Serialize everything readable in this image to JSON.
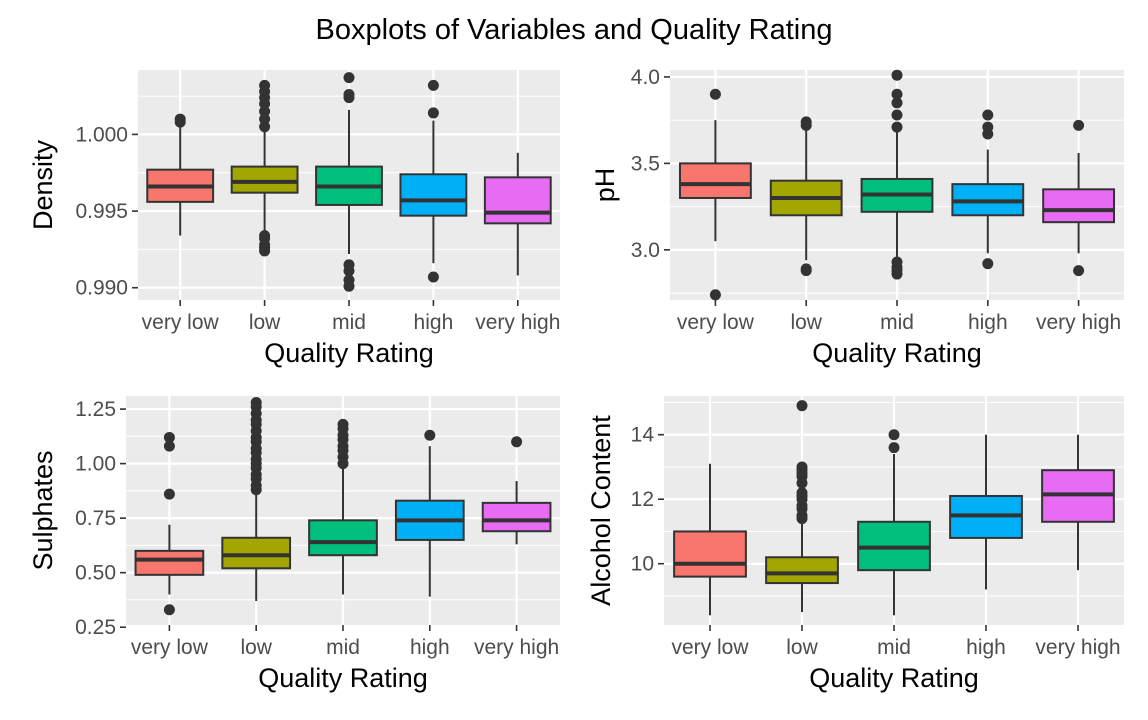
{
  "title": "Boxplots of Variables and Quality Rating",
  "colors": {
    "very low": "#F8766D",
    "low": "#A3A500",
    "mid": "#00BF7D",
    "high": "#00B0F6",
    "very high": "#E76BF3",
    "panel_bg": "#EBEBEB",
    "grid": "#FFFFFF"
  },
  "chart_data": [
    {
      "type": "boxplot",
      "xlabel": "Quality Rating",
      "ylabel": "Density",
      "categories": [
        "very low",
        "low",
        "mid",
        "high",
        "very high"
      ],
      "ylim": [
        0.9892,
        1.0042
      ],
      "yticks": [
        0.99,
        0.995,
        1.0
      ],
      "ytick_labels": [
        "0.990",
        "0.995",
        "1.000"
      ],
      "grid": true,
      "boxes": [
        {
          "label": "very low",
          "whisker_low": 0.9934,
          "q1": 0.9956,
          "median": 0.9966,
          "q3": 0.9977,
          "whisker_high": 1.0008,
          "outliers": [
            1.0008,
            1.001
          ]
        },
        {
          "label": "low",
          "whisker_low": 0.9936,
          "q1": 0.9962,
          "median": 0.9969,
          "q3": 0.9979,
          "whisker_high": 1.0003,
          "outliers": [
            1.0005,
            1.001,
            1.0015,
            1.002,
            1.0024,
            1.0028,
            1.0032,
            0.9924,
            0.9926,
            0.9928,
            0.9932,
            0.9934
          ]
        },
        {
          "label": "mid",
          "whisker_low": 0.9922,
          "q1": 0.9954,
          "median": 0.9966,
          "q3": 0.9979,
          "whisker_high": 1.0016,
          "outliers": [
            1.0024,
            1.0026,
            1.0037,
            0.9915,
            0.9911,
            0.9905,
            0.9901
          ]
        },
        {
          "label": "high",
          "whisker_low": 0.9916,
          "q1": 0.9947,
          "median": 0.9957,
          "q3": 0.9974,
          "whisker_high": 1.0009,
          "outliers": [
            1.0014,
            1.0032,
            0.9907
          ]
        },
        {
          "label": "very high",
          "whisker_low": 0.9908,
          "q1": 0.9942,
          "median": 0.9949,
          "q3": 0.9972,
          "whisker_high": 0.9988,
          "outliers": []
        }
      ]
    },
    {
      "type": "boxplot",
      "xlabel": "Quality Rating",
      "ylabel": "pH",
      "categories": [
        "very low",
        "low",
        "mid",
        "high",
        "very high"
      ],
      "ylim": [
        2.71,
        4.04
      ],
      "yticks": [
        3.0,
        3.5,
        4.0
      ],
      "ytick_labels": [
        "3.0",
        "3.5",
        "4.0"
      ],
      "grid": true,
      "boxes": [
        {
          "label": "very low",
          "whisker_low": 3.05,
          "q1": 3.3,
          "median": 3.38,
          "q3": 3.5,
          "whisker_high": 3.75,
          "outliers": [
            3.9,
            2.74
          ]
        },
        {
          "label": "low",
          "whisker_low": 2.94,
          "q1": 3.2,
          "median": 3.3,
          "q3": 3.4,
          "whisker_high": 3.69,
          "outliers": [
            3.72,
            3.74,
            2.88,
            2.89
          ]
        },
        {
          "label": "mid",
          "whisker_low": 2.96,
          "q1": 3.22,
          "median": 3.32,
          "q3": 3.41,
          "whisker_high": 3.68,
          "outliers": [
            3.71,
            3.78,
            3.85,
            3.9,
            4.01,
            2.93,
            2.9,
            2.88,
            2.86
          ]
        },
        {
          "label": "high",
          "whisker_low": 2.98,
          "q1": 3.2,
          "median": 3.28,
          "q3": 3.38,
          "whisker_high": 3.58,
          "outliers": [
            3.67,
            3.71,
            3.78,
            2.92
          ]
        },
        {
          "label": "very high",
          "whisker_low": 2.98,
          "q1": 3.16,
          "median": 3.23,
          "q3": 3.35,
          "whisker_high": 3.56,
          "outliers": [
            3.72,
            2.88
          ]
        }
      ]
    },
    {
      "type": "boxplot",
      "xlabel": "Quality Rating",
      "ylabel": "Sulphates",
      "categories": [
        "very low",
        "low",
        "mid",
        "high",
        "very high"
      ],
      "ylim": [
        0.26,
        1.31
      ],
      "yticks": [
        0.25,
        0.5,
        0.75,
        1.0,
        1.25
      ],
      "ytick_labels": [
        "0.25",
        "0.50",
        "0.75",
        "1.00",
        "1.25"
      ],
      "grid": true,
      "boxes": [
        {
          "label": "very low",
          "whisker_low": 0.4,
          "q1": 0.49,
          "median": 0.56,
          "q3": 0.6,
          "whisker_high": 0.72,
          "outliers": [
            0.86,
            1.08,
            1.12,
            0.33
          ]
        },
        {
          "label": "low",
          "whisker_low": 0.37,
          "q1": 0.52,
          "median": 0.58,
          "q3": 0.66,
          "whisker_high": 0.87,
          "outliers": [
            0.88,
            0.9,
            0.93,
            0.95,
            0.98,
            1.0,
            1.02,
            1.05,
            1.07,
            1.1,
            1.12,
            1.15,
            1.18,
            1.2,
            1.23,
            1.26,
            1.28
          ]
        },
        {
          "label": "mid",
          "whisker_low": 0.4,
          "q1": 0.58,
          "median": 0.64,
          "q3": 0.74,
          "whisker_high": 0.98,
          "outliers": [
            1.0,
            1.03,
            1.06,
            1.08,
            1.11,
            1.13,
            1.16,
            1.18
          ]
        },
        {
          "label": "high",
          "whisker_low": 0.39,
          "q1": 0.65,
          "median": 0.74,
          "q3": 0.83,
          "whisker_high": 1.08,
          "outliers": [
            1.13
          ]
        },
        {
          "label": "very high",
          "whisker_low": 0.63,
          "q1": 0.69,
          "median": 0.74,
          "q3": 0.82,
          "whisker_high": 0.92,
          "outliers": [
            1.1
          ]
        }
      ]
    },
    {
      "type": "boxplot",
      "xlabel": "Quality Rating",
      "ylabel": "Alcohol Content",
      "categories": [
        "very low",
        "low",
        "mid",
        "high",
        "very high"
      ],
      "ylim": [
        8.1,
        15.2
      ],
      "yticks": [
        10,
        12,
        14
      ],
      "ytick_labels": [
        "10",
        "12",
        "14"
      ],
      "grid": true,
      "boxes": [
        {
          "label": "very low",
          "whisker_low": 8.4,
          "q1": 9.6,
          "median": 10.0,
          "q3": 11.0,
          "whisker_high": 13.1,
          "outliers": []
        },
        {
          "label": "low",
          "whisker_low": 8.5,
          "q1": 9.4,
          "median": 9.7,
          "q3": 10.2,
          "whisker_high": 11.3,
          "outliers": [
            11.4,
            11.5,
            11.7,
            11.8,
            12.0,
            12.1,
            12.2,
            12.5,
            12.7,
            12.8,
            12.9,
            13.0,
            14.9
          ]
        },
        {
          "label": "mid",
          "whisker_low": 8.4,
          "q1": 9.8,
          "median": 10.5,
          "q3": 11.3,
          "whisker_high": 13.4,
          "outliers": [
            13.6,
            14.0
          ]
        },
        {
          "label": "high",
          "whisker_low": 9.2,
          "q1": 10.8,
          "median": 11.5,
          "q3": 12.1,
          "whisker_high": 14.0,
          "outliers": []
        },
        {
          "label": "very high",
          "whisker_low": 9.8,
          "q1": 11.3,
          "median": 12.15,
          "q3": 12.9,
          "whisker_high": 14.0,
          "outliers": []
        }
      ]
    }
  ]
}
